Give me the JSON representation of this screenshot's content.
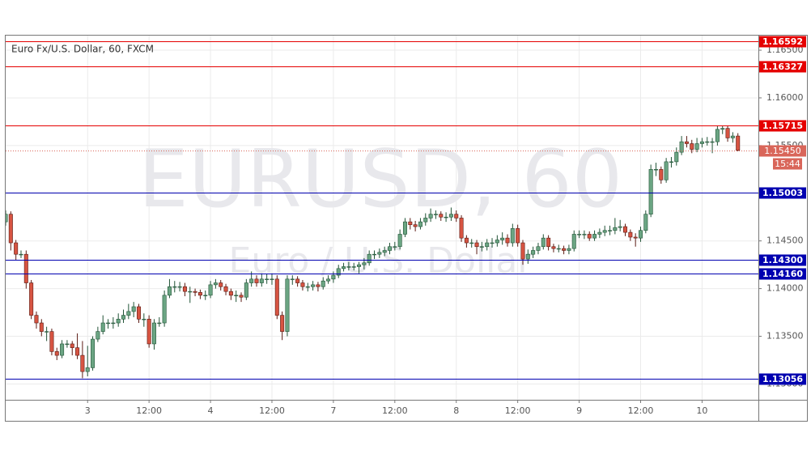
{
  "chart_data": {
    "type": "candlestick",
    "title": "Euro Fx/U.S. Dollar, 60, FXCM",
    "watermark": [
      "EURUSD, 60",
      "Euro / U.S. Dollar"
    ],
    "xlim": [
      0,
      147
    ],
    "xticks": [
      {
        "value": 16,
        "label": "3"
      },
      {
        "value": 28,
        "label": "12:00"
      },
      {
        "value": 40,
        "label": "4"
      },
      {
        "value": 52,
        "label": "12:00"
      },
      {
        "value": 64,
        "label": "7"
      },
      {
        "value": 76,
        "label": "12:00"
      },
      {
        "value": 88,
        "label": "8"
      },
      {
        "value": 100,
        "label": "12:00"
      },
      {
        "value": 112,
        "label": "9"
      },
      {
        "value": 124,
        "label": "12:00"
      },
      {
        "value": 136,
        "label": "10"
      }
    ],
    "ylim": [
      1.12834,
      1.16653
    ],
    "yticks": [
      {
        "value": 1.13,
        "label": "1.13000"
      },
      {
        "value": 1.135,
        "label": "1.13500"
      },
      {
        "value": 1.14,
        "label": "1.14000"
      },
      {
        "value": 1.145,
        "label": "1.14500"
      },
      {
        "value": 1.15,
        "label": "1.15000"
      },
      {
        "value": 1.155,
        "label": "1.15500"
      },
      {
        "value": 1.16,
        "label": "1.16000"
      },
      {
        "value": 1.165,
        "label": "1.16500"
      }
    ],
    "grid": true,
    "up_color": "#6ba583",
    "down_color": "#d75442",
    "open": [
      1.147,
      1.1478,
      1.1448,
      1.1436,
      1.1436,
      1.1406,
      1.1372,
      1.1364,
      1.1355,
      1.1355,
      1.1334,
      1.133,
      1.1342,
      1.1342,
      1.1338,
      1.133,
      1.1313,
      1.1317,
      1.1347,
      1.1355,
      1.1364,
      1.1364,
      1.1364,
      1.1368,
      1.1372,
      1.1376,
      1.1381,
      1.1368,
      1.1368,
      1.1342,
      1.1364,
      1.1364,
      1.1393,
      1.1402,
      1.1402,
      1.1402,
      1.1397,
      1.1397,
      1.1396,
      1.1393,
      1.1393,
      1.1404,
      1.1406,
      1.1402,
      1.1397,
      1.1393,
      1.1393,
      1.1391,
      1.1406,
      1.141,
      1.1406,
      1.141,
      1.141,
      1.141,
      1.1372,
      1.1355,
      1.141,
      1.141,
      1.1406,
      1.1402,
      1.1402,
      1.1404,
      1.1402,
      1.1408,
      1.141,
      1.1414,
      1.1421,
      1.1423,
      1.1423,
      1.1423,
      1.1425,
      1.1427,
      1.1436,
      1.1436,
      1.1438,
      1.144,
      1.1444,
      1.1444,
      1.1457,
      1.147,
      1.1467,
      1.1465,
      1.147,
      1.1474,
      1.1478,
      1.1478,
      1.1475,
      1.1475,
      1.1478,
      1.1474,
      1.1453,
      1.1448,
      1.1448,
      1.1444,
      1.1444,
      1.1448,
      1.1448,
      1.1451,
      1.1453,
      1.1448,
      1.1463,
      1.1448,
      1.1431,
      1.1436,
      1.144,
      1.1444,
      1.1453,
      1.1444,
      1.1442,
      1.1442,
      1.144,
      1.1442,
      1.1457,
      1.1457,
      1.1457,
      1.1453,
      1.1457,
      1.1459,
      1.1461,
      1.1461,
      1.1464,
      1.1465,
      1.1459,
      1.1454,
      1.1453,
      1.1461,
      1.1478,
      1.1525,
      1.1525,
      1.1514,
      1.1533,
      1.1533,
      1.1543,
      1.1554,
      1.1552,
      1.1546,
      1.1552,
      1.1554,
      1.1554,
      1.1554,
      1.1567,
      1.1568,
      1.1558,
      1.156
    ],
    "high": [
      1.1482,
      1.1481,
      1.1451,
      1.144,
      1.144,
      1.1409,
      1.1376,
      1.1368,
      1.136,
      1.1358,
      1.1338,
      1.1346,
      1.1346,
      1.1345,
      1.1353,
      1.1345,
      1.134,
      1.135,
      1.136,
      1.1372,
      1.1368,
      1.137,
      1.1374,
      1.1378,
      1.1384,
      1.1386,
      1.1384,
      1.1374,
      1.1372,
      1.1368,
      1.137,
      1.1398,
      1.141,
      1.1408,
      1.1407,
      1.1406,
      1.1402,
      1.14,
      1.1399,
      1.1398,
      1.1408,
      1.141,
      1.1409,
      1.1405,
      1.14,
      1.1398,
      1.1396,
      1.141,
      1.1418,
      1.1414,
      1.1416,
      1.1415,
      1.1416,
      1.1414,
      1.1376,
      1.1414,
      1.1414,
      1.1413,
      1.1409,
      1.1406,
      1.1408,
      1.1407,
      1.1412,
      1.1414,
      1.1418,
      1.1425,
      1.1427,
      1.1428,
      1.1427,
      1.1428,
      1.1432,
      1.144,
      1.144,
      1.1442,
      1.1444,
      1.1448,
      1.1449,
      1.1462,
      1.1474,
      1.1474,
      1.1471,
      1.1474,
      1.1479,
      1.1484,
      1.1482,
      1.1481,
      1.148,
      1.1485,
      1.1482,
      1.1477,
      1.1456,
      1.1452,
      1.1451,
      1.1449,
      1.1452,
      1.1453,
      1.1456,
      1.1459,
      1.1457,
      1.1468,
      1.1467,
      1.1451,
      1.1441,
      1.1444,
      1.1448,
      1.1457,
      1.1456,
      1.1447,
      1.1446,
      1.1445,
      1.1446,
      1.1461,
      1.1461,
      1.1461,
      1.146,
      1.1461,
      1.1463,
      1.1466,
      1.1466,
      1.1474,
      1.1472,
      1.1468,
      1.1462,
      1.1458,
      1.1465,
      1.1482,
      1.153,
      1.1532,
      1.1528,
      1.1537,
      1.1538,
      1.1548,
      1.156,
      1.156,
      1.1556,
      1.1558,
      1.1558,
      1.1559,
      1.1558,
      1.1571,
      1.1571,
      1.1571,
      1.1564,
      1.1563
    ],
    "low": [
      1.1466,
      1.144,
      1.143,
      1.1432,
      1.14,
      1.1368,
      1.1358,
      1.135,
      1.1345,
      1.133,
      1.1325,
      1.1327,
      1.1338,
      1.133,
      1.1326,
      1.1306,
      1.1308,
      1.1314,
      1.1344,
      1.1352,
      1.1358,
      1.1358,
      1.136,
      1.1364,
      1.1368,
      1.137,
      1.1364,
      1.136,
      1.1338,
      1.1336,
      1.136,
      1.136,
      1.139,
      1.1396,
      1.1397,
      1.1392,
      1.1385,
      1.1392,
      1.1389,
      1.1388,
      1.139,
      1.14,
      1.1398,
      1.1393,
      1.1388,
      1.1386,
      1.1386,
      1.1388,
      1.1402,
      1.1402,
      1.1402,
      1.1405,
      1.1404,
      1.1368,
      1.1346,
      1.135,
      1.1404,
      1.1402,
      1.1398,
      1.1397,
      1.1398,
      1.1397,
      1.1399,
      1.1405,
      1.1406,
      1.1411,
      1.1418,
      1.1419,
      1.1419,
      1.1416,
      1.142,
      1.1424,
      1.1431,
      1.1432,
      1.1434,
      1.1436,
      1.144,
      1.1441,
      1.1454,
      1.1462,
      1.146,
      1.1462,
      1.1466,
      1.147,
      1.1473,
      1.1471,
      1.147,
      1.1471,
      1.147,
      1.1449,
      1.1443,
      1.1443,
      1.1436,
      1.1439,
      1.144,
      1.1443,
      1.1444,
      1.1446,
      1.1444,
      1.1444,
      1.1444,
      1.1425,
      1.1426,
      1.1432,
      1.1436,
      1.1441,
      1.144,
      1.1438,
      1.1438,
      1.1436,
      1.1436,
      1.1439,
      1.1453,
      1.1452,
      1.145,
      1.145,
      1.1453,
      1.1455,
      1.1456,
      1.1457,
      1.146,
      1.1455,
      1.145,
      1.1444,
      1.1449,
      1.1458,
      1.1475,
      1.1518,
      1.151,
      1.1511,
      1.1527,
      1.1529,
      1.154,
      1.1548,
      1.1542,
      1.1543,
      1.1548,
      1.155,
      1.1542,
      1.155,
      1.1562,
      1.1554,
      1.1553,
      1.1544
    ],
    "close": [
      1.1478,
      1.1448,
      1.1436,
      1.1436,
      1.1406,
      1.1372,
      1.1364,
      1.1355,
      1.1355,
      1.1334,
      1.133,
      1.1342,
      1.1342,
      1.1338,
      1.133,
      1.1313,
      1.1317,
      1.1347,
      1.1355,
      1.1364,
      1.1364,
      1.1364,
      1.1368,
      1.1372,
      1.1376,
      1.1381,
      1.1368,
      1.1368,
      1.1342,
      1.1364,
      1.1364,
      1.1393,
      1.1402,
      1.1402,
      1.1402,
      1.1397,
      1.1397,
      1.1396,
      1.1393,
      1.1393,
      1.1404,
      1.1406,
      1.1402,
      1.1397,
      1.1393,
      1.1393,
      1.1391,
      1.1406,
      1.141,
      1.1406,
      1.141,
      1.141,
      1.141,
      1.1372,
      1.1355,
      1.141,
      1.141,
      1.1406,
      1.1402,
      1.1402,
      1.1404,
      1.1402,
      1.1408,
      1.141,
      1.1414,
      1.1421,
      1.1423,
      1.1423,
      1.1423,
      1.1425,
      1.1427,
      1.1436,
      1.1436,
      1.1438,
      1.144,
      1.1444,
      1.1444,
      1.1457,
      1.147,
      1.1467,
      1.1465,
      1.147,
      1.1474,
      1.1478,
      1.1478,
      1.1475,
      1.1475,
      1.1478,
      1.1474,
      1.1453,
      1.1448,
      1.1448,
      1.1444,
      1.1444,
      1.1448,
      1.1448,
      1.1451,
      1.1453,
      1.1448,
      1.1463,
      1.1448,
      1.1431,
      1.1436,
      1.144,
      1.1444,
      1.1453,
      1.1444,
      1.1442,
      1.1442,
      1.144,
      1.1442,
      1.1457,
      1.1457,
      1.1457,
      1.1453,
      1.1457,
      1.1459,
      1.1461,
      1.1461,
      1.1464,
      1.1465,
      1.1459,
      1.1454,
      1.1453,
      1.1461,
      1.1478,
      1.1525,
      1.1525,
      1.1514,
      1.1533,
      1.1533,
      1.1543,
      1.1554,
      1.1552,
      1.1546,
      1.1552,
      1.1554,
      1.1554,
      1.1554,
      1.1567,
      1.1568,
      1.1558,
      1.156,
      1.1545
    ],
    "levels": [
      {
        "value": 1.16592,
        "label": "1.16592",
        "color": "#e50000"
      },
      {
        "value": 1.16327,
        "label": "1.16327",
        "color": "#e50000"
      },
      {
        "value": 1.15715,
        "label": "1.15715",
        "color": "#e50000"
      },
      {
        "value": 1.15003,
        "label": "1.15003",
        "color": "#0000b0"
      },
      {
        "value": 1.143,
        "label": "1.14300",
        "color": "#0000b0"
      },
      {
        "value": 1.1416,
        "label": "1.14160",
        "color": "#0000b0"
      },
      {
        "value": 1.13056,
        "label": "1.13056",
        "color": "#0000b0"
      }
    ],
    "last_price": {
      "value": 1.1545,
      "label": "1.15450",
      "countdown": "15:44",
      "color": "#d9665a"
    }
  }
}
